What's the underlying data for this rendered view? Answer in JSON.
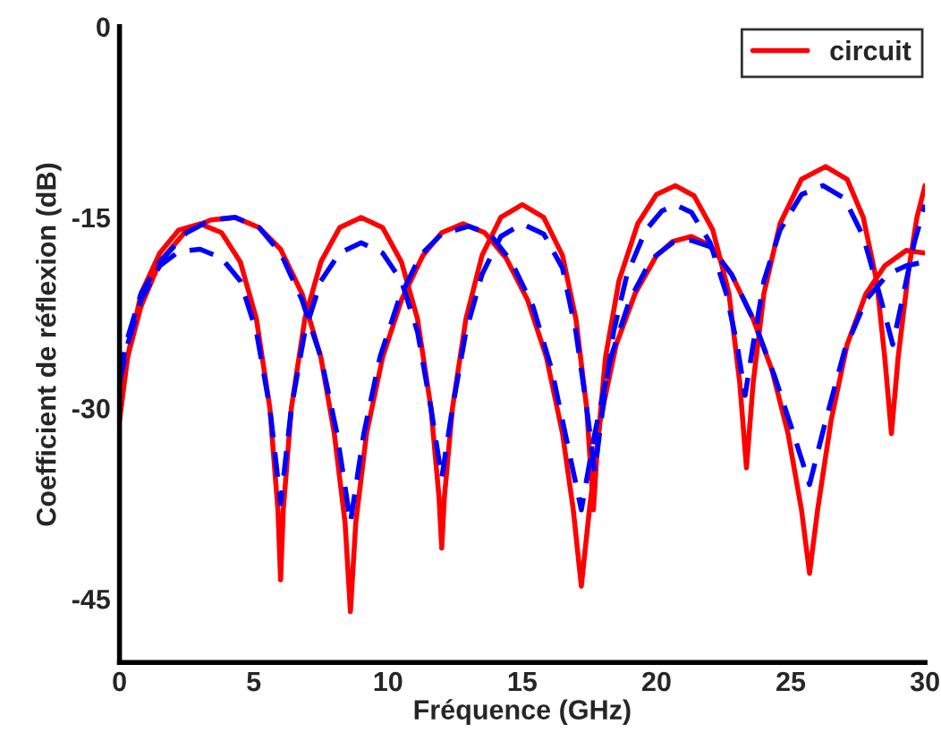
{
  "chart_data": {
    "type": "line",
    "xlabel": "Fréquence (GHz)",
    "ylabel": "Coefficient de réflexion (dB)",
    "xlim": [
      0,
      30
    ],
    "xticks": [
      0,
      5,
      10,
      15,
      20,
      25,
      30
    ],
    "ylim": [
      -50,
      0
    ],
    "yticks": [
      {
        "value": -45,
        "label": "-45"
      },
      {
        "value": -30,
        "label": "-30"
      },
      {
        "value": -15,
        "label": "-15"
      },
      0
    ],
    "grid": false,
    "legend": "top right",
    "series": [
      {
        "name": "circuit",
        "color": "#ff0000",
        "line_style": "solid",
        "x": [
          0,
          0.3,
          0.8,
          1.5,
          2.2,
          3,
          3.8,
          4.5,
          5.1,
          5.6,
          5.9,
          6.0,
          6.1,
          6.4,
          6.9,
          7.5,
          8.2,
          9.0,
          9.8,
          10.5,
          11.1,
          11.6,
          11.9,
          12.0,
          12.1,
          12.4,
          12.9,
          13.5,
          14.2,
          15.0,
          15.8,
          16.5,
          17.0,
          17.4,
          17.65,
          17.8,
          18.1,
          18.6,
          19.3,
          20.0,
          20.7,
          21.4,
          22.1,
          22.7,
          23.1,
          23.35,
          23.6,
          24.0,
          24.6,
          25.4,
          26.3,
          27.1,
          27.7,
          28.2,
          28.5,
          28.75,
          29.0,
          29.4,
          29.7,
          30
        ],
        "values": [
          -31,
          -26,
          -21,
          -17.8,
          -16,
          -15.5,
          -16.2,
          -18.5,
          -23,
          -30,
          -38,
          -43.5,
          -38,
          -30,
          -23,
          -18.5,
          -15.8,
          -15,
          -15.8,
          -18.5,
          -23,
          -30,
          -37,
          -41,
          -37,
          -30,
          -23,
          -18,
          -15,
          -14,
          -15,
          -18,
          -23,
          -30,
          -38,
          -33,
          -26,
          -20,
          -15.5,
          -13.2,
          -12.5,
          -13.3,
          -16,
          -21,
          -28,
          -34.7,
          -28,
          -21,
          -15.5,
          -12,
          -11,
          -12,
          -15,
          -20,
          -26,
          -32,
          -26,
          -19,
          -15,
          -12.5
        ]
      },
      {
        "color": "#ff0000",
        "line_style": "solid",
        "x": [
          0,
          0.3,
          0.8,
          1.5,
          2.5,
          3.4,
          4.3,
          5.2,
          6.0,
          6.8,
          7.5,
          8.0,
          8.4,
          8.6,
          8.8,
          9.2,
          9.8,
          10.5,
          11.3,
          12.0,
          12.8,
          13.6,
          14.4,
          15.2,
          15.9,
          16.5,
          16.9,
          17.2,
          17.5,
          17.9,
          18.5,
          19.2,
          20.0,
          20.6,
          21.3,
          22.0,
          22.8,
          23.6,
          24.3,
          24.9,
          25.4,
          25.7,
          26.0,
          26.5,
          27.1,
          27.8,
          28.5,
          29.3,
          30
        ],
        "values": [
          -30,
          -26,
          -22,
          -18.5,
          -16,
          -15.2,
          -15,
          -15.8,
          -17.5,
          -21,
          -26,
          -32,
          -39,
          -46,
          -39,
          -32,
          -26,
          -21.5,
          -18,
          -16.2,
          -15.5,
          -16.2,
          -18.2,
          -21.5,
          -26,
          -32,
          -38,
          -44,
          -38,
          -31,
          -25,
          -21,
          -18,
          -16.9,
          -16.5,
          -17.2,
          -19.5,
          -23,
          -27,
          -32,
          -38,
          -43,
          -38,
          -31,
          -25,
          -21,
          -18.8,
          -17.6,
          -17.8
        ]
      },
      {
        "color": "#0000ff",
        "line_style": "dashed",
        "x": [
          0,
          0.3,
          0.8,
          1.5,
          2.2,
          3,
          3.8,
          4.5,
          5.1,
          5.6,
          6.0,
          6.4,
          6.9,
          7.5,
          8.2,
          9.0,
          9.8,
          10.5,
          11.1,
          11.6,
          12.0,
          12.4,
          12.9,
          13.5,
          14.2,
          15.0,
          15.8,
          16.5,
          17.0,
          17.4,
          17.7,
          18.0,
          18.4,
          18.9,
          19.6,
          20.2,
          20.7,
          21.3,
          22.0,
          22.6,
          23.0,
          23.3,
          23.6,
          24.0,
          24.6,
          25.4,
          26.2,
          27.0,
          27.7,
          28.3,
          28.8,
          29.2,
          29.6,
          30
        ],
        "values": [
          -28,
          -25,
          -21.5,
          -18.8,
          -17.7,
          -17.5,
          -18.2,
          -20,
          -24,
          -30,
          -37.5,
          -30,
          -24,
          -20,
          -17.8,
          -17,
          -17.8,
          -20,
          -24,
          -30,
          -35.5,
          -30,
          -24,
          -19.5,
          -16.5,
          -15.5,
          -16.3,
          -19,
          -24,
          -30,
          -35,
          -30,
          -24,
          -19.5,
          -16,
          -14.5,
          -14,
          -14.6,
          -17,
          -21,
          -25,
          -29,
          -25,
          -20,
          -16,
          -13.2,
          -12.5,
          -13.5,
          -16.5,
          -21,
          -25,
          -21,
          -17,
          -14
        ]
      },
      {
        "color": "#0000ff",
        "line_style": "dashed",
        "x": [
          0,
          0.3,
          0.8,
          1.5,
          2.5,
          3.4,
          4.3,
          5.2,
          6.0,
          6.8,
          7.5,
          8.1,
          8.6,
          9.1,
          9.7,
          10.4,
          11.2,
          12.0,
          13.0,
          13.8,
          14.6,
          15.4,
          16.1,
          16.7,
          17.2,
          17.7,
          18.3,
          19.0,
          19.8,
          20.6,
          21.3,
          22.0,
          22.8,
          23.6,
          24.4,
          25.1,
          25.7,
          26.3,
          27.0,
          27.8,
          28.6,
          29.3,
          30
        ],
        "values": [
          -27.5,
          -24.5,
          -21,
          -18.5,
          -16.2,
          -15.2,
          -15,
          -15.8,
          -17.8,
          -21.5,
          -26,
          -32,
          -39,
          -32,
          -26,
          -21.5,
          -18,
          -16.3,
          -15.7,
          -16.3,
          -18.5,
          -22,
          -27,
          -33,
          -38,
          -32,
          -26,
          -21.5,
          -18.3,
          -17,
          -16.8,
          -17.3,
          -19.5,
          -23,
          -27.5,
          -32,
          -36,
          -31,
          -25.5,
          -21.5,
          -19.5,
          -18.8,
          -18.5
        ]
      }
    ]
  }
}
